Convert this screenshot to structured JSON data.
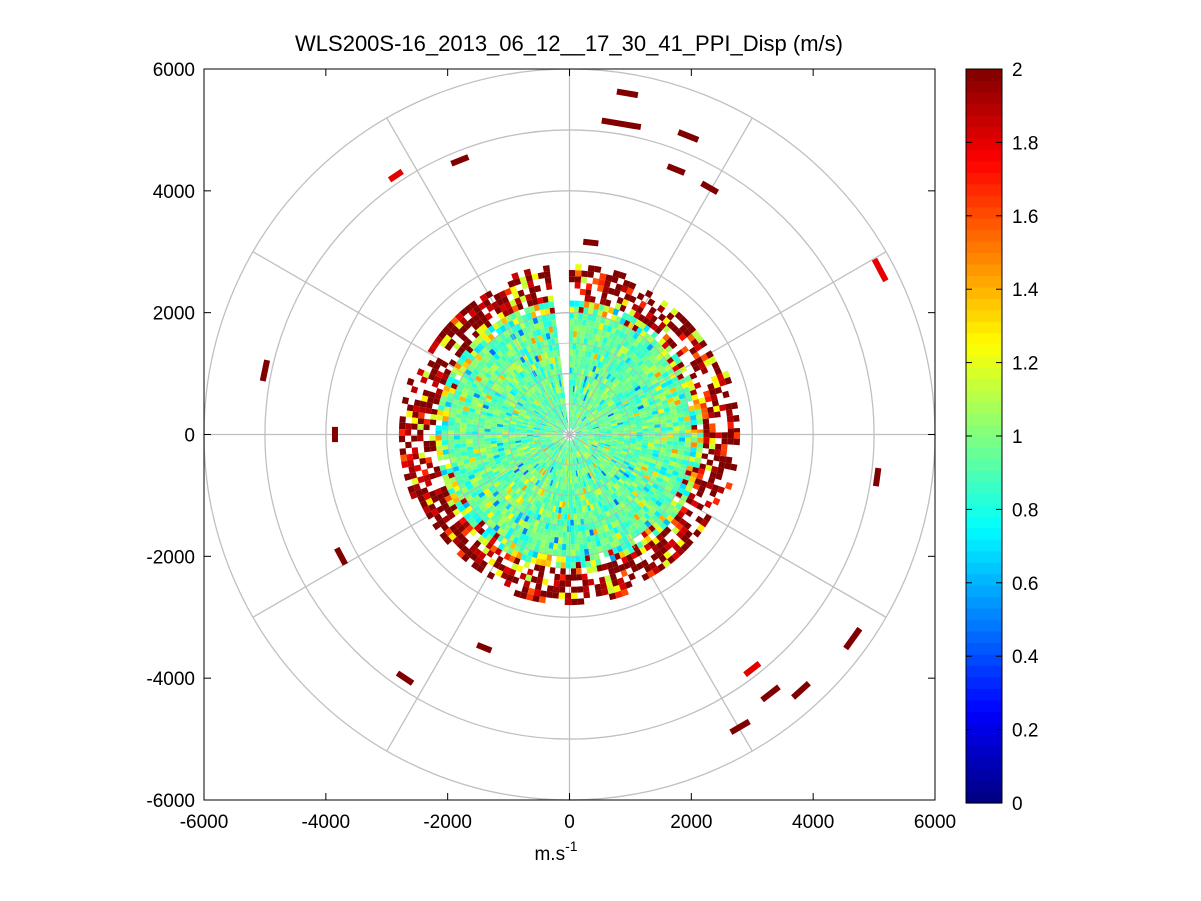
{
  "chart_data": {
    "type": "heatmap",
    "subtype": "polar-ppi-scan",
    "title": "WLS200S-16_2013_06_12__17_30_41_PPI_Disp (m/s)",
    "xlabel_base": "m.s",
    "xlabel_sup": "-1",
    "ylabel": "",
    "xlim": [
      -6000,
      6000
    ],
    "ylim": [
      -6000,
      6000
    ],
    "xticks": [
      -6000,
      -4000,
      -2000,
      0,
      2000,
      4000,
      6000
    ],
    "yticks": [
      -6000,
      -4000,
      -2000,
      0,
      2000,
      4000,
      6000
    ],
    "xtick_labels": [
      "-6000",
      "-4000",
      "-2000",
      "0",
      "2000",
      "4000",
      "6000"
    ],
    "ytick_labels": [
      "-6000",
      "-4000",
      "-2000",
      "0",
      "2000",
      "4000",
      "6000"
    ],
    "polar_grid": {
      "range_rings": [
        1000,
        2000,
        3000,
        4000,
        5000,
        6000
      ],
      "spoke_angles_deg": [
        0,
        30,
        60,
        90,
        120,
        150,
        180,
        210,
        240,
        270,
        300,
        330
      ],
      "max_range": 6000
    },
    "colorbar": {
      "colormap": "jet",
      "clim": [
        0,
        2
      ],
      "ticks": [
        0,
        0.2,
        0.4,
        0.6,
        0.8,
        1,
        1.2,
        1.4,
        1.6,
        1.8,
        2
      ],
      "tick_labels": [
        "0",
        "0.2",
        "0.4",
        "0.6",
        "0.8",
        "1",
        "1.2",
        "1.4",
        "1.6",
        "1.8",
        "2"
      ]
    },
    "data_regions": {
      "dense_core": {
        "range": [
          0,
          2150
        ],
        "typical_value": 0.95,
        "spread": 0.18
      },
      "mixed_band": {
        "range": [
          1900,
          2800
        ],
        "values_range": [
          1.1,
          2.0
        ]
      },
      "missing_wedge_deg": [
        90,
        96
      ]
    },
    "scatter_segments": [
      {
        "x": 950,
        "y": 5600,
        "len": 350,
        "value": 2.0
      },
      {
        "x": 850,
        "y": 5100,
        "len": 650,
        "value": 2.0
      },
      {
        "x": 1950,
        "y": 4900,
        "len": 350,
        "value": 2.0
      },
      {
        "x": 1750,
        "y": 4350,
        "len": 300,
        "value": 2.0
      },
      {
        "x": 2300,
        "y": 4050,
        "len": 300,
        "value": 2.0
      },
      {
        "x": -1800,
        "y": 4500,
        "len": 300,
        "value": 2.0
      },
      {
        "x": -2850,
        "y": 4250,
        "len": 250,
        "value": 1.8
      },
      {
        "x": 5100,
        "y": 2700,
        "len": 400,
        "value": 1.8
      },
      {
        "x": 350,
        "y": 3150,
        "len": 250,
        "value": 2.0
      },
      {
        "x": -5000,
        "y": 1050,
        "len": 350,
        "value": 2.0
      },
      {
        "x": -3850,
        "y": 0,
        "len": 250,
        "value": 2.0
      },
      {
        "x": 5050,
        "y": -700,
        "len": 300,
        "value": 2.0
      },
      {
        "x": -3750,
        "y": -2000,
        "len": 300,
        "value": 2.0
      },
      {
        "x": -1400,
        "y": -3500,
        "len": 250,
        "value": 2.0
      },
      {
        "x": -2700,
        "y": -4000,
        "len": 300,
        "value": 2.0
      },
      {
        "x": 3000,
        "y": -3850,
        "len": 300,
        "value": 1.8
      },
      {
        "x": 3300,
        "y": -4250,
        "len": 350,
        "value": 2.0
      },
      {
        "x": 3800,
        "y": -4200,
        "len": 350,
        "value": 2.0
      },
      {
        "x": 4650,
        "y": -3350,
        "len": 400,
        "value": 2.0
      },
      {
        "x": 2800,
        "y": -4800,
        "len": 350,
        "value": 2.0
      }
    ]
  }
}
